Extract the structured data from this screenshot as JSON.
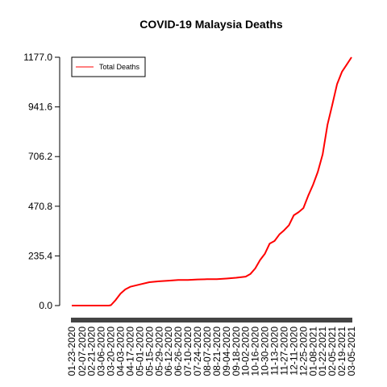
{
  "chart_data": {
    "type": "line",
    "title": "COVID-19 Malaysia Deaths",
    "xlabel": "",
    "ylabel": "",
    "x_tick_labels": [
      "01-23-2020",
      "02-07-2020",
      "02-21-2020",
      "03-06-2020",
      "03-20-2020",
      "04-03-2020",
      "04-17-2020",
      "05-01-2020",
      "05-15-2020",
      "05-29-2020",
      "06-12-2020",
      "06-26-2020",
      "07-10-2020",
      "07-24-2020",
      "08-07-2020",
      "08-21-2020",
      "09-04-2020",
      "09-18-2020",
      "10-02-2020",
      "10-16-2020",
      "10-30-2020",
      "11-13-2020",
      "11-27-2020",
      "12-11-2020",
      "12-25-2020",
      "01-08-2021",
      "01-22-2021",
      "02-05-2021",
      "02-19-2021",
      "03-05-2021"
    ],
    "y_ticks": [
      0.0,
      235.4,
      470.8,
      706.2,
      941.6,
      1177.0
    ],
    "y_tick_labels": [
      "0.0",
      "235.4",
      "470.8",
      "706.2",
      "941.6",
      "1177.0"
    ],
    "ylim": [
      0,
      1177
    ],
    "xlim": [
      "01-23-2020",
      "03-05-2021"
    ],
    "grid": false,
    "legend": {
      "position": "top-left",
      "entries": [
        "Total Deaths"
      ]
    },
    "series": [
      {
        "name": "Total Deaths",
        "color": "#ff0000",
        "x": [
          "01-23-2020",
          "02-07-2020",
          "02-21-2020",
          "03-06-2020",
          "03-17-2020",
          "03-20-2020",
          "03-27-2020",
          "04-03-2020",
          "04-10-2020",
          "04-17-2020",
          "05-01-2020",
          "05-15-2020",
          "05-29-2020",
          "06-12-2020",
          "06-26-2020",
          "07-10-2020",
          "07-24-2020",
          "08-07-2020",
          "08-21-2020",
          "09-04-2020",
          "09-18-2020",
          "10-02-2020",
          "10-09-2020",
          "10-16-2020",
          "10-23-2020",
          "10-30-2020",
          "11-06-2020",
          "11-13-2020",
          "11-20-2020",
          "11-27-2020",
          "12-04-2020",
          "12-11-2020",
          "12-18-2020",
          "12-25-2020",
          "01-01-2021",
          "01-08-2021",
          "01-15-2021",
          "01-22-2021",
          "01-29-2021",
          "02-05-2021",
          "02-12-2021",
          "02-19-2021",
          "02-26-2021",
          "03-05-2021"
        ],
        "values": [
          0,
          0,
          0,
          0,
          0,
          2,
          27,
          57,
          77,
          89,
          100,
          111,
          115,
          118,
          121,
          121,
          124,
          125,
          125,
          128,
          132,
          137,
          150,
          176,
          216,
          246,
          294,
          306,
          337,
          357,
          381,
          428,
          443,
          462,
          521,
          573,
          634,
          717,
          857,
          951,
          1050,
          1108,
          1142,
          1177
        ]
      }
    ]
  }
}
